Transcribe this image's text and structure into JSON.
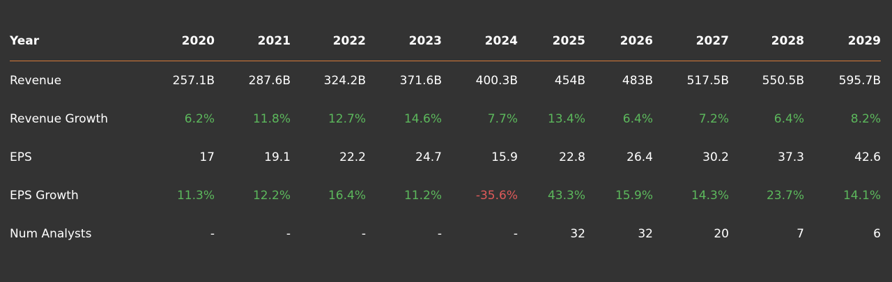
{
  "colors": {
    "background": "#333333",
    "text": "#ffffff",
    "positive": "#5cb85c",
    "negative": "#e05a5a",
    "header_rule": "#d87a3a"
  },
  "table": {
    "header_label": "Year",
    "years": [
      "2020",
      "2021",
      "2022",
      "2023",
      "2024",
      "2025",
      "2026",
      "2027",
      "2028",
      "2029"
    ],
    "rows": [
      {
        "label": "Revenue",
        "values": [
          "257.1B",
          "287.6B",
          "324.2B",
          "371.6B",
          "400.3B",
          "454B",
          "483B",
          "517.5B",
          "550.5B",
          "595.7B"
        ],
        "tones": [
          "neutral",
          "neutral",
          "neutral",
          "neutral",
          "neutral",
          "neutral",
          "neutral",
          "neutral",
          "neutral",
          "neutral"
        ]
      },
      {
        "label": "Revenue Growth",
        "values": [
          "6.2%",
          "11.8%",
          "12.7%",
          "14.6%",
          "7.7%",
          "13.4%",
          "6.4%",
          "7.2%",
          "6.4%",
          "8.2%"
        ],
        "tones": [
          "pos",
          "pos",
          "pos",
          "pos",
          "pos",
          "pos",
          "pos",
          "pos",
          "pos",
          "pos"
        ]
      },
      {
        "label": "EPS",
        "values": [
          "17",
          "19.1",
          "22.2",
          "24.7",
          "15.9",
          "22.8",
          "26.4",
          "30.2",
          "37.3",
          "42.6"
        ],
        "tones": [
          "neutral",
          "neutral",
          "neutral",
          "neutral",
          "neutral",
          "neutral",
          "neutral",
          "neutral",
          "neutral",
          "neutral"
        ]
      },
      {
        "label": "EPS Growth",
        "values": [
          "11.3%",
          "12.2%",
          "16.4%",
          "11.2%",
          "-35.6%",
          "43.3%",
          "15.9%",
          "14.3%",
          "23.7%",
          "14.1%"
        ],
        "tones": [
          "pos",
          "pos",
          "pos",
          "pos",
          "neg",
          "pos",
          "pos",
          "pos",
          "pos",
          "pos"
        ]
      },
      {
        "label": "Num Analysts",
        "values": [
          "-",
          "-",
          "-",
          "-",
          "-",
          "32",
          "32",
          "20",
          "7",
          "6"
        ],
        "tones": [
          "neutral",
          "neutral",
          "neutral",
          "neutral",
          "neutral",
          "neutral",
          "neutral",
          "neutral",
          "neutral",
          "neutral"
        ]
      }
    ]
  }
}
